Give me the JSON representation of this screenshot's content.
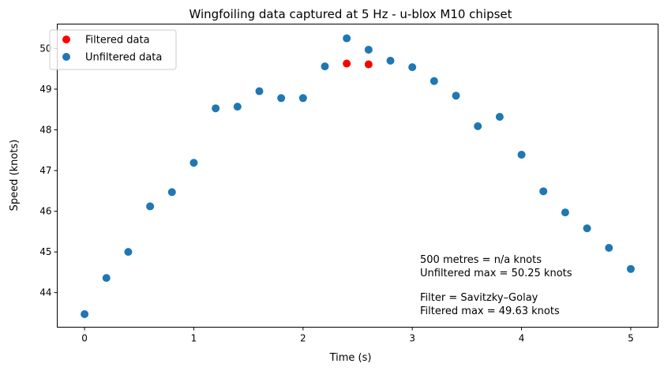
{
  "chart_data": {
    "type": "scatter",
    "title": "Wingfoiling data captured at 5 Hz - u-blox M10 chipset",
    "xlabel": "Time (s)",
    "ylabel": "Speed (knots)",
    "xlim": [
      -0.25,
      5.25
    ],
    "ylim": [
      43.15,
      50.6
    ],
    "x_ticks": [
      0,
      1,
      2,
      3,
      4,
      5
    ],
    "y_ticks": [
      44,
      45,
      46,
      47,
      48,
      49,
      50
    ],
    "grid": false,
    "legend_position": "top-left",
    "series": [
      {
        "name": "Filtered data",
        "color": "#ff0000",
        "points": [
          {
            "x": 2.4,
            "y": 49.63
          },
          {
            "x": 2.6,
            "y": 49.61
          }
        ]
      },
      {
        "name": "Unfiltered data",
        "color": "#1f77b4",
        "points": [
          {
            "x": 0.0,
            "y": 43.47
          },
          {
            "x": 0.2,
            "y": 44.36
          },
          {
            "x": 0.4,
            "y": 45.0
          },
          {
            "x": 0.6,
            "y": 46.12
          },
          {
            "x": 0.8,
            "y": 46.47
          },
          {
            "x": 1.0,
            "y": 47.19
          },
          {
            "x": 1.2,
            "y": 48.53
          },
          {
            "x": 1.4,
            "y": 48.57
          },
          {
            "x": 1.6,
            "y": 48.95
          },
          {
            "x": 1.8,
            "y": 48.78
          },
          {
            "x": 2.0,
            "y": 48.78
          },
          {
            "x": 2.2,
            "y": 49.56
          },
          {
            "x": 2.4,
            "y": 50.25
          },
          {
            "x": 2.6,
            "y": 49.97
          },
          {
            "x": 2.8,
            "y": 49.7
          },
          {
            "x": 3.0,
            "y": 49.54
          },
          {
            "x": 3.2,
            "y": 49.2
          },
          {
            "x": 3.4,
            "y": 48.84
          },
          {
            "x": 3.6,
            "y": 48.09
          },
          {
            "x": 3.8,
            "y": 48.32
          },
          {
            "x": 4.0,
            "y": 47.39
          },
          {
            "x": 4.2,
            "y": 46.49
          },
          {
            "x": 4.4,
            "y": 45.97
          },
          {
            "x": 4.6,
            "y": 45.58
          },
          {
            "x": 4.8,
            "y": 45.1
          },
          {
            "x": 5.0,
            "y": 44.58
          }
        ]
      }
    ],
    "annotations": [
      "500 metres = n/a knots",
      "Unfiltered max = 50.25 knots",
      "Filter = Savitzky–Golay",
      "Filtered max = 49.63 knots"
    ]
  }
}
